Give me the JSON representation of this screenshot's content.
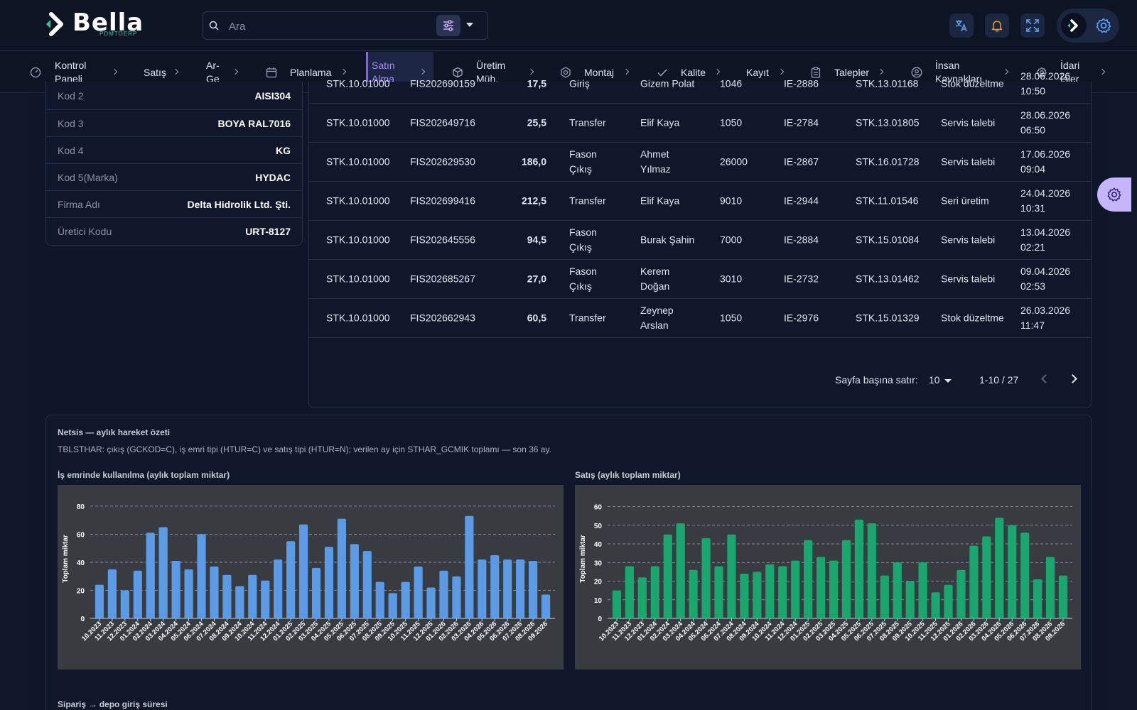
{
  "app": {
    "name": "Bella",
    "subtitle": "PDMTOERP"
  },
  "search": {
    "placeholder": "Ara"
  },
  "nav": [
    {
      "label": "Kontrol Paneli",
      "icon": "dashboard-icon"
    },
    {
      "label": "Satış",
      "icon": ""
    },
    {
      "label": "Ar-Ge",
      "icon": ""
    },
    {
      "label": "Planlama",
      "icon": "calendar-icon"
    },
    {
      "label": "Satın Alma",
      "icon": "",
      "active": true
    },
    {
      "label": "Üretim Müh.",
      "icon": "box-icon"
    },
    {
      "label": "Montaj",
      "icon": "hexagon-icon"
    },
    {
      "label": "Kalite",
      "icon": "check-icon"
    },
    {
      "label": "Kayıt",
      "icon": ""
    },
    {
      "label": "Talepler",
      "icon": "clipboard-icon"
    },
    {
      "label": "İnsan Kaynakları",
      "icon": "user-circle-icon"
    },
    {
      "label": "İdari İşler",
      "icon": "gear-icon"
    }
  ],
  "details": [
    {
      "key": "Kod 2",
      "value": "AISI304"
    },
    {
      "key": "Kod 3",
      "value": "BOYA RAL7016"
    },
    {
      "key": "Kod 4",
      "value": "KG"
    },
    {
      "key": "Kod 5(Marka)",
      "value": "HYDAC"
    },
    {
      "key": "Firma Adı",
      "value": "Delta Hidrolik Ltd. Şti."
    },
    {
      "key": "Üretici Kodu",
      "value": "URT-8127"
    }
  ],
  "movements": [
    {
      "stok": "STK.10.01000",
      "fis": "FIS202690159",
      "miktar": "17,5",
      "tip": "Giriş",
      "kisi": "Gizem Polat",
      "depo": "1046",
      "ie": "IE-2886",
      "ref": "STK.13.01168",
      "aciklama": "Stok düzeltme",
      "tarih": "28.06.2026 10:50"
    },
    {
      "stok": "STK.10.01000",
      "fis": "FIS202649716",
      "miktar": "25,5",
      "tip": "Transfer",
      "kisi": "Elif Kaya",
      "depo": "1050",
      "ie": "IE-2784",
      "ref": "STK.13.01805",
      "aciklama": "Servis talebi",
      "tarih": "28.06.2026 06:50"
    },
    {
      "stok": "STK.10.01000",
      "fis": "FIS202629530",
      "miktar": "186,0",
      "tip": "Fason Çıkış",
      "kisi": "Ahmet Yılmaz",
      "depo": "26000",
      "ie": "IE-2867",
      "ref": "STK.16.01728",
      "aciklama": "Servis talebi",
      "tarih": "17.06.2026 09:04"
    },
    {
      "stok": "STK.10.01000",
      "fis": "FIS202699416",
      "miktar": "212,5",
      "tip": "Transfer",
      "kisi": "Elif Kaya",
      "depo": "9010",
      "ie": "IE-2944",
      "ref": "STK.11.01546",
      "aciklama": "Seri üretim",
      "tarih": "24.04.2026 10:31"
    },
    {
      "stok": "STK.10.01000",
      "fis": "FIS202645556",
      "miktar": "94,5",
      "tip": "Fason Çıkış",
      "kisi": "Burak Şahin",
      "depo": "7000",
      "ie": "IE-2884",
      "ref": "STK.15.01084",
      "aciklama": "Servis talebi",
      "tarih": "13.04.2026 02:21"
    },
    {
      "stok": "STK.10.01000",
      "fis": "FIS202685267",
      "miktar": "27,0",
      "tip": "Fason Çıkış",
      "kisi": "Kerem Doğan",
      "depo": "3010",
      "ie": "IE-2732",
      "ref": "STK.13.01462",
      "aciklama": "Servis talebi",
      "tarih": "09.04.2026 02:53"
    },
    {
      "stok": "STK.10.01000",
      "fis": "FIS202662943",
      "miktar": "60,5",
      "tip": "Transfer",
      "kisi": "Zeynep Arslan",
      "depo": "1050",
      "ie": "IE-2976",
      "ref": "STK.15.01329",
      "aciklama": "Stok düzeltme",
      "tarih": "26.03.2026 11:47"
    }
  ],
  "pager": {
    "rows_label": "Sayfa başına satır:",
    "rows_value": "10",
    "range": "1-10 / 27"
  },
  "summary": {
    "title": "Netsis — aylık hareket özeti",
    "desc": "TBLSTHAR: çıkış (GCKOD=C), iş emri tipi (HTUR=C) ve satış tipi (HTUR=N); verilen ay için STHAR_GCMIK toplamı — son 36 ay.",
    "bottom_title": "Sipariş → depo giriş süresi"
  },
  "colors": {
    "accent": "#8b5cf6",
    "bar_blue": "#5b9be6",
    "bar_green": "#1aa66f",
    "bg": "#10172b"
  },
  "chart_data": [
    {
      "type": "bar",
      "title": "İş emrinde kullanılma (aylık toplam miktar)",
      "ylabel": "Toplam miktar",
      "xlabel": "",
      "ylim": [
        0,
        85
      ],
      "yticks": [
        0,
        20,
        40,
        60,
        80
      ],
      "grid": true,
      "color": "#5b9be6",
      "categories": [
        "10.2023",
        "11.2023",
        "12.2023",
        "01.2024",
        "02.2024",
        "03.2024",
        "04.2024",
        "05.2024",
        "06.2024",
        "07.2024",
        "08.2024",
        "09.2024",
        "10.2024",
        "11.2024",
        "12.2024",
        "01.2025",
        "02.2025",
        "03.2025",
        "04.2025",
        "05.2025",
        "06.2025",
        "07.2025",
        "08.2025",
        "09.2025",
        "10.2025",
        "11.2025",
        "12.2025",
        "01.2026",
        "02.2026",
        "03.2026",
        "04.2026",
        "05.2026",
        "06.2026",
        "07.2026",
        "08.2026",
        "09.2026"
      ],
      "values": [
        24,
        35,
        20,
        34,
        61,
        65,
        41,
        35,
        60,
        37,
        31,
        23,
        31,
        27,
        42,
        55,
        67,
        36,
        51,
        71,
        53,
        48,
        26,
        18,
        26,
        37,
        22,
        34,
        30,
        73,
        42,
        45,
        42,
        42,
        41,
        17
      ]
    },
    {
      "type": "bar",
      "title": "Satış (aylık toplam miktar)",
      "ylabel": "Toplam miktar",
      "xlabel": "",
      "ylim": [
        0,
        64
      ],
      "yticks": [
        0,
        10,
        20,
        30,
        40,
        50,
        60
      ],
      "grid": true,
      "color": "#1aa66f",
      "categories": [
        "10.2023",
        "11.2023",
        "12.2023",
        "01.2024",
        "02.2024",
        "03.2024",
        "04.2024",
        "05.2024",
        "06.2024",
        "07.2024",
        "08.2024",
        "09.2024",
        "10.2024",
        "11.2024",
        "12.2024",
        "01.2025",
        "02.2025",
        "03.2025",
        "04.2025",
        "05.2025",
        "06.2025",
        "07.2025",
        "08.2025",
        "09.2025",
        "10.2025",
        "11.2025",
        "12.2025",
        "01.2026",
        "02.2026",
        "03.2026",
        "04.2026",
        "05.2026",
        "06.2026",
        "07.2026",
        "08.2026",
        "09.2026"
      ],
      "values": [
        15,
        28,
        22,
        28,
        45,
        51,
        26,
        43,
        28,
        45,
        24,
        25,
        29,
        28,
        31,
        42,
        33,
        31,
        42,
        53,
        51,
        23,
        30,
        20,
        30,
        14,
        18,
        26,
        39,
        44,
        54,
        50,
        46,
        21,
        33,
        23
      ]
    }
  ]
}
